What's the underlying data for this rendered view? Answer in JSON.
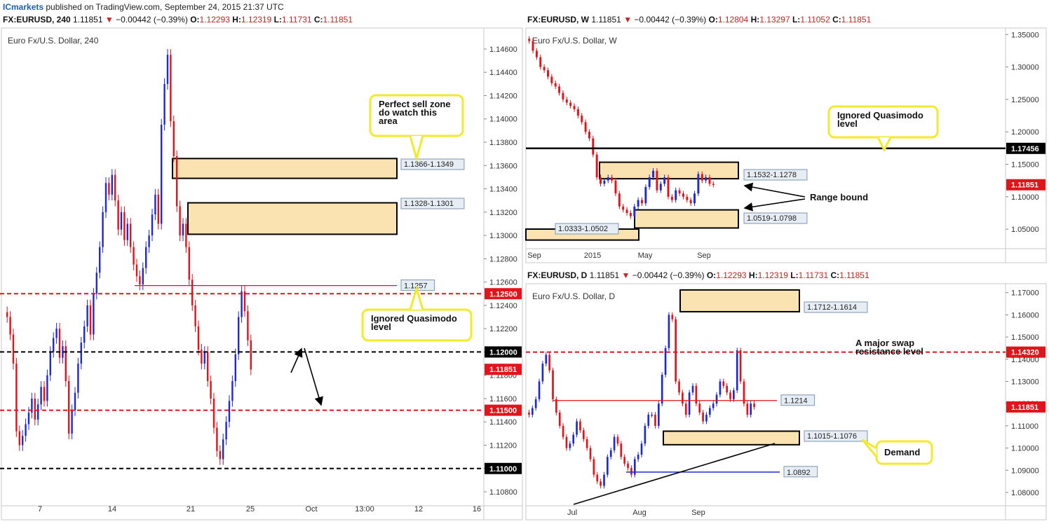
{
  "header": {
    "brand": "ICmarkets",
    "published": " published on TradingView.com, September 24, 2015 21:37 UTC"
  },
  "colors": {
    "bull": "#1f2bd0",
    "bear": "#e0141a",
    "zone_fill": "#fae3b0",
    "red_level": "#e0141a",
    "black_level": "#000000",
    "blue_level": "#1f2bd0",
    "callout_border": "#f2ea2a",
    "current_price_bg": "#e0141a"
  },
  "panels": [
    {
      "id": "h4",
      "header": {
        "symbol": "FX:EURUSD, 240",
        "price": "1.11851",
        "change": "−0.00442 (−0.39%)",
        "o": "1.12293",
        "h": "1.12319",
        "l": "1.11731",
        "c": "1.11851"
      },
      "title": "Euro Fx/U.S. Dollar, 240"
    },
    {
      "id": "weekly",
      "header": {
        "symbol": "FX:EURUSD, W",
        "price": "1.11851",
        "change": "−0.00442 (−0.39%)",
        "o": "1.12804",
        "h": "1.13297",
        "l": "1.11052",
        "c": "1.11851"
      },
      "title": "Euro Fx/U.S. Dollar, W"
    },
    {
      "id": "daily",
      "header": {
        "symbol": "FX:EURUSD, D",
        "price": "1.11851",
        "change": "−0.00442 (−0.39%)",
        "o": "1.12293",
        "h": "1.12319",
        "l": "1.11731",
        "c": "1.11851"
      },
      "title": "Euro Fx/U.S. Dollar, D"
    }
  ],
  "chart_data": [
    {
      "type": "candlestick",
      "panel": "h4",
      "title": "Euro Fx/U.S. Dollar, 240",
      "ylim": [
        1.1068,
        1.1478
      ],
      "y_ticks": [
        "1.14600",
        "1.14400",
        "1.14200",
        "1.14000",
        "1.13800",
        "1.13600",
        "1.13400",
        "1.13200",
        "1.13000",
        "1.12800",
        "1.12600",
        "1.12400",
        "1.12200",
        "1.12000",
        "1.11800",
        "1.11600",
        "1.11400",
        "1.11200",
        "1.11000",
        "1.10800"
      ],
      "x_ticks": [
        "7",
        "14",
        "21",
        "25",
        "Oct",
        "13:00",
        "12",
        "16"
      ],
      "closes": [
        1.123,
        1.1215,
        1.119,
        1.1132,
        1.112,
        1.1128,
        1.1138,
        1.1148,
        1.116,
        1.1142,
        1.1155,
        1.117,
        1.1158,
        1.118,
        1.12,
        1.1212,
        1.122,
        1.1195,
        1.1205,
        1.1175,
        1.113,
        1.115,
        1.1165,
        1.119,
        1.1208,
        1.1222,
        1.124,
        1.1215,
        1.125,
        1.1268,
        1.129,
        1.132,
        1.1345,
        1.1335,
        1.1352,
        1.133,
        1.1305,
        1.132,
        1.1296,
        1.131,
        1.129,
        1.1275,
        1.1265,
        1.1258,
        1.1272,
        1.129,
        1.13,
        1.1318,
        1.1335,
        1.131,
        1.1395,
        1.143,
        1.1455,
        1.1398,
        1.1368,
        1.1325,
        1.13,
        1.131,
        1.129,
        1.1262,
        1.124,
        1.1222,
        1.1202,
        1.119,
        1.12,
        1.1175,
        1.116,
        1.1135,
        1.1115,
        1.1108,
        1.1125,
        1.114,
        1.1158,
        1.1175,
        1.1198,
        1.123,
        1.1252,
        1.1235,
        1.121,
        1.1185
      ],
      "levels": [
        {
          "value": 1.125,
          "label": "1.12500",
          "style": "red-dashed"
        },
        {
          "value": 1.12,
          "label": "1.12000",
          "style": "black-dashed"
        },
        {
          "value": 1.115,
          "label": "1.11500",
          "style": "red-dashed"
        },
        {
          "value": 1.11,
          "label": "1.11000",
          "style": "black-dashed"
        },
        {
          "value": 1.1257,
          "label": "1.1257",
          "style": "red-solid"
        }
      ],
      "current_price": "1.11851",
      "zones": [
        {
          "label": "1.1366-1.1349",
          "top": 1.1366,
          "bottom": 1.1349
        },
        {
          "label": "1.1328-1.1301",
          "top": 1.1328,
          "bottom": 1.1301
        }
      ],
      "annotations": [
        {
          "text": [
            "Perfect sell zone",
            "do watch this",
            "area"
          ]
        },
        {
          "text": [
            "Ignored Quasimodo",
            "level"
          ]
        }
      ]
    },
    {
      "type": "candlestick",
      "panel": "weekly",
      "title": "Euro Fx/U.S. Dollar, W",
      "ylim": [
        1.02,
        1.36
      ],
      "y_ticks": [
        "1.35000",
        "1.30000",
        "1.25000",
        "1.20000",
        "1.15000",
        "1.10000",
        "1.05000"
      ],
      "x_ticks": [
        "Sep",
        "2015",
        "May",
        "Sep"
      ],
      "closes": [
        1.34,
        1.325,
        1.315,
        1.3,
        1.295,
        1.285,
        1.275,
        1.27,
        1.26,
        1.25,
        1.245,
        1.24,
        1.235,
        1.225,
        1.215,
        1.2,
        1.19,
        1.165,
        1.13,
        1.12,
        1.125,
        1.13,
        1.125,
        1.105,
        1.085,
        1.08,
        1.075,
        1.07,
        1.085,
        1.095,
        1.09,
        1.115,
        1.13,
        1.14,
        1.11,
        1.12,
        1.13,
        1.1,
        1.095,
        1.11,
        1.105,
        1.1,
        1.095,
        1.09,
        1.105,
        1.135,
        1.125,
        1.13,
        1.12,
        1.1185
      ],
      "levels": [
        {
          "value": 1.17456,
          "label": "1.17456",
          "style": "black-solid"
        }
      ],
      "current_price": "1.11851",
      "zones": [
        {
          "label": "1.1532-1.1278",
          "top": 1.1532,
          "bottom": 1.1278
        },
        {
          "label": "1.0519-1.0798",
          "top": 1.0798,
          "bottom": 1.0519
        },
        {
          "label": "1.0333-1.0502",
          "top": 1.0502,
          "bottom": 1.0333
        }
      ],
      "annotations": [
        {
          "text": [
            "Ignored Quasimodo",
            "level"
          ]
        },
        {
          "text": [
            "Range bound"
          ]
        }
      ]
    },
    {
      "type": "candlestick",
      "panel": "daily",
      "title": "Euro Fx/U.S. Dollar, D",
      "ylim": [
        1.074,
        1.174
      ],
      "y_ticks": [
        "1.17000",
        "1.16000",
        "1.15000",
        "1.14000",
        "1.13000",
        "1.12000",
        "1.11000",
        "1.10000",
        "1.09000",
        "1.08000"
      ],
      "x_ticks": [
        "Jul",
        "Aug",
        "Sep"
      ],
      "closes": [
        1.115,
        1.118,
        1.122,
        1.13,
        1.138,
        1.142,
        1.135,
        1.122,
        1.116,
        1.11,
        1.105,
        1.1,
        1.102,
        1.106,
        1.112,
        1.108,
        1.104,
        1.1,
        1.095,
        1.088,
        1.085,
        1.083,
        1.088,
        1.096,
        1.099,
        1.105,
        1.102,
        1.096,
        1.093,
        1.091,
        1.088,
        1.095,
        1.097,
        1.102,
        1.11,
        1.115,
        1.115,
        1.11,
        1.12,
        1.133,
        1.145,
        1.16,
        1.158,
        1.13,
        1.125,
        1.12,
        1.115,
        1.125,
        1.128,
        1.12,
        1.116,
        1.112,
        1.115,
        1.118,
        1.12,
        1.124,
        1.13,
        1.128,
        1.125,
        1.122,
        1.126,
        1.144,
        1.13,
        1.12,
        1.115,
        1.12,
        1.1185
      ],
      "levels": [
        {
          "value": 1.1432,
          "label": "1.14320",
          "style": "red-dashed"
        },
        {
          "value": 1.1214,
          "label": "1.1214",
          "style": "red-solid"
        },
        {
          "value": 1.0892,
          "label": "1.0892",
          "style": "blue-solid"
        }
      ],
      "current_price": "1.11851",
      "zones": [
        {
          "label": "1.1712-1.1614",
          "top": 1.1712,
          "bottom": 1.1614
        },
        {
          "label": "1.1015-1.1076",
          "top": 1.1076,
          "bottom": 1.1015
        }
      ],
      "annotations": [
        {
          "text": [
            "A major swap",
            "resistance level"
          ]
        },
        {
          "text": [
            "Demand"
          ]
        }
      ]
    }
  ]
}
